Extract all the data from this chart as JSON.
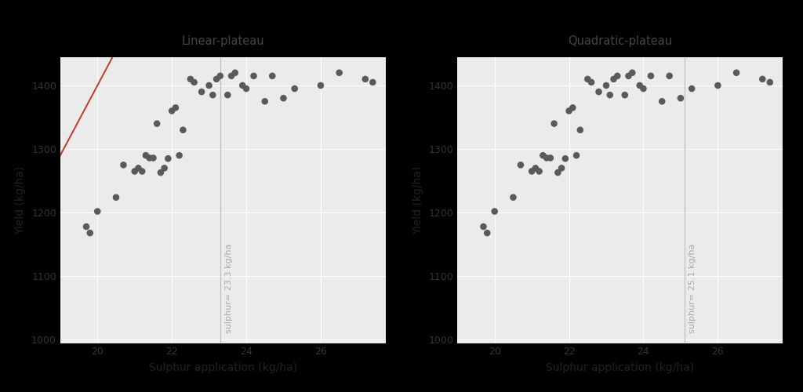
{
  "scatter_x": [
    19.7,
    19.8,
    20.0,
    20.5,
    20.7,
    21.0,
    21.1,
    21.2,
    21.3,
    21.4,
    21.5,
    21.6,
    21.7,
    21.8,
    21.9,
    22.0,
    22.1,
    22.2,
    22.3,
    22.5,
    22.6,
    22.8,
    23.0,
    23.1,
    23.2,
    23.3,
    23.5,
    23.6,
    23.7,
    23.9,
    24.0,
    24.2,
    24.5,
    24.7,
    25.0,
    25.3,
    26.0,
    26.5,
    27.2,
    27.4
  ],
  "scatter_y": [
    1178,
    1168,
    1202,
    1224,
    1275,
    1265,
    1270,
    1265,
    1290,
    1286,
    1286,
    1340,
    1263,
    1270,
    1285,
    1360,
    1365,
    1290,
    1330,
    1410,
    1405,
    1390,
    1400,
    1385,
    1410,
    1415,
    1385,
    1415,
    1420,
    1400,
    1395,
    1415,
    1375,
    1415,
    1380,
    1395,
    1400,
    1420,
    1410,
    1405
  ],
  "xlim": [
    19.0,
    27.75
  ],
  "ylim": [
    995,
    1445
  ],
  "xticks": [
    20,
    22,
    24,
    26
  ],
  "yticks": [
    1000,
    1100,
    1200,
    1300,
    1400
  ],
  "xlabel": "Sulphur application (kg/ha)",
  "ylabel": "Yield (kg/ha)",
  "bg_color": "#EBEBEB",
  "scatter_color": "#5A5A5A",
  "scatter_size": 38,
  "line_color": "#C0392B",
  "line_width": 1.4,
  "vline1_x": 23.3,
  "vline2_x": 25.1,
  "vline_color": "#BBBBBB",
  "annotation1": "sulphur= 23.3 kg/ha",
  "annotation2": "sulphur= 25.1 kg/ha",
  "annot_color": "#AAAAAA",
  "title1": "Linear-plateau",
  "title2": "Quadratic-plateau",
  "title_color": "#444444",
  "title_fontsize": 10.5,
  "axis_label_fontsize": 10,
  "tick_fontsize": 9,
  "annot_fontsize": 8,
  "grid_color": "#FFFFFF",
  "grid_lw": 0.7,
  "black_bar_height": 0.055
}
